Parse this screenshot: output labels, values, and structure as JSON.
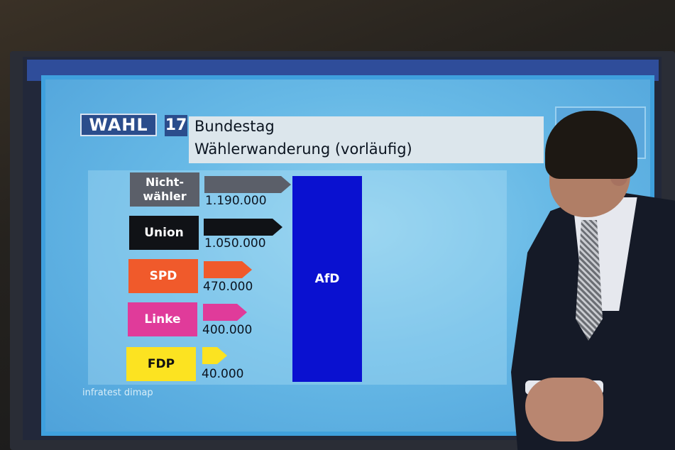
{
  "graphic": {
    "logo_text": "WAHL",
    "logo_number": "17",
    "title_line1": "Bundestag",
    "title_line2": "Wählerwanderung (vorläufig)",
    "source": "infratest dimap",
    "target": "AfD"
  },
  "chart_data": {
    "type": "bar",
    "title": "Wählerwanderung (vorläufig)",
    "target": "AfD",
    "categories": [
      "Nicht-wähler",
      "Union",
      "SPD",
      "Linke",
      "FDP"
    ],
    "values": [
      1190000,
      1050000,
      470000,
      400000,
      40000
    ],
    "value_labels": [
      "1.190.000",
      "1.050.000",
      "470.000",
      "400.000",
      "40.000"
    ],
    "colors": [
      "#5b5f69",
      "#101216",
      "#f05a2b",
      "#e03b9a",
      "#fce321"
    ]
  }
}
